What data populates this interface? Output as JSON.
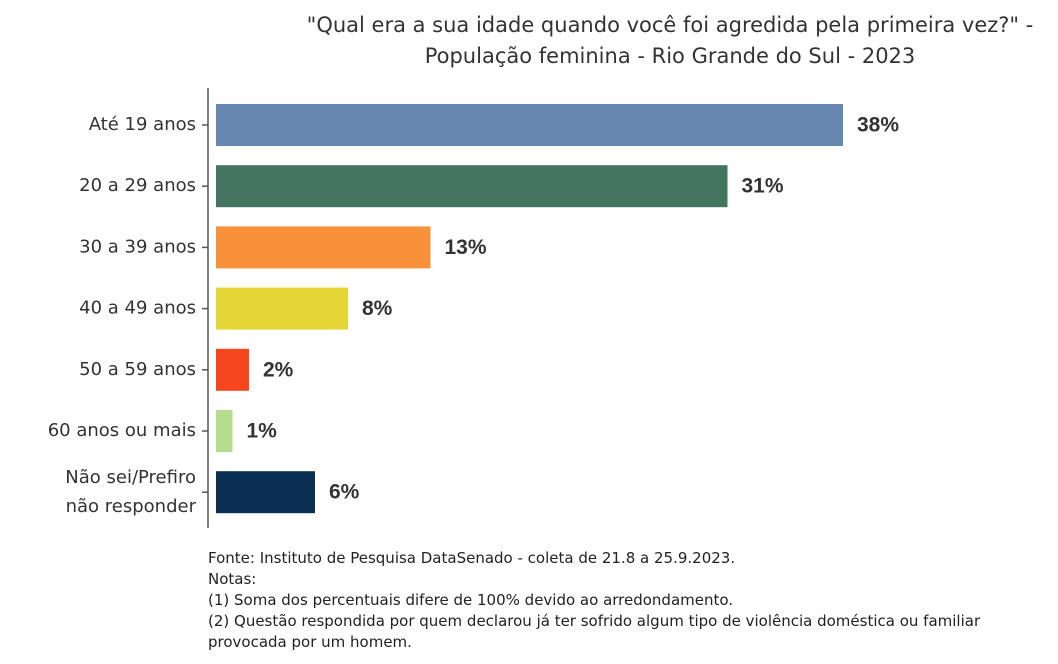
{
  "chart_data": {
    "type": "bar",
    "orientation": "horizontal",
    "title": "\"Qual era a sua idade quando você foi agredida pela primeira vez?\" - População feminina - Rio Grande do Sul - 2023",
    "categories": [
      "Até 19 anos",
      "20 a 29 anos",
      "30 a 39 anos",
      "40 a 49 anos",
      "50 a 59 anos",
      "60 anos ou mais",
      "Não sei/Prefiro não responder"
    ],
    "values": [
      38,
      31,
      13,
      8,
      2,
      1,
      6
    ],
    "value_labels": [
      "38%",
      "31%",
      "13%",
      "8%",
      "2%",
      "1%",
      "6%"
    ],
    "colors": [
      "#6688b0",
      "#437561",
      "#f7923a",
      "#e5d636",
      "#f5461e",
      "#b6dc8e",
      "#0b2f55"
    ],
    "notes": [
      "Fonte: Instituto de Pesquisa DataSenado - coleta de 21.8 a 25.9.2023.",
      "Notas:",
      "(1) Soma dos percentuais difere de 100% devido ao arredondamento.",
      "(2) Questão respondida por quem declarou já ter sofrido algum tipo de violência doméstica ou familiar provocada por um homem."
    ]
  }
}
